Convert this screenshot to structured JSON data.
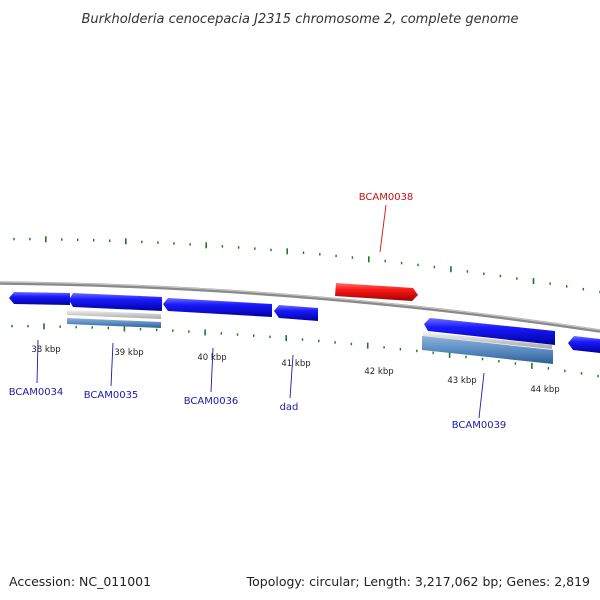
{
  "title": "Burkholderia cenocepacia J2315 chromosome 2, complete genome",
  "footer": {
    "accession": "Accession: NC_011001",
    "summary": "Topology: circular; Length: 3,217,062 bp; Genes: 2,819"
  },
  "colors": {
    "gene_forward": "#1010e6",
    "gene_highlight": "#e61010",
    "tick": "#1a7a1a",
    "label": "#1a1aaa",
    "label_highlight": "#cc1111",
    "backbone": "#808080"
  },
  "kbp_labels": [
    "38 kbp",
    "39 kbp",
    "40 kbp",
    "41 kbp",
    "42 kbp",
    "43 kbp",
    "44 kbp"
  ],
  "genes": [
    {
      "id": "BCAM0034",
      "label": "BCAM0034"
    },
    {
      "id": "BCAM0035",
      "label": "BCAM0035"
    },
    {
      "id": "BCAM0036",
      "label": "BCAM0036"
    },
    {
      "id": "dad",
      "label": "dad"
    },
    {
      "id": "BCAM0038",
      "label": "BCAM0038",
      "highlight": true
    },
    {
      "id": "BCAM0039",
      "label": "BCAM0039"
    }
  ]
}
